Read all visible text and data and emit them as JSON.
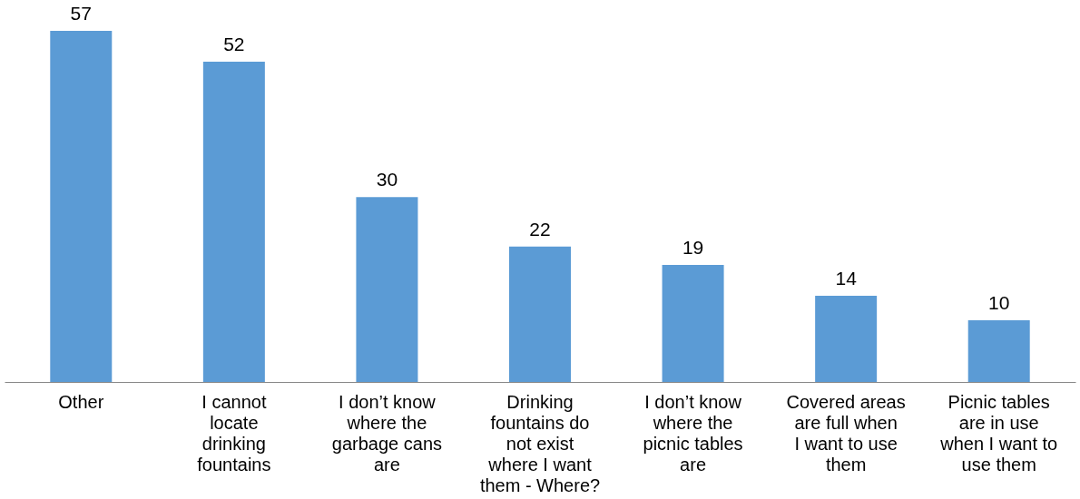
{
  "chart_data": {
    "type": "bar",
    "categories": [
      "Other",
      "I cannot locate drinking fountains",
      "I don’t know where the garbage cans are",
      "Drinking fountains do not exist where I want them - Where?",
      "I don’t know where the picnic tables are",
      "Covered areas are full when I want to use them",
      "Picnic tables are in use when I want to use them"
    ],
    "values": [
      57,
      52,
      30,
      22,
      19,
      14,
      10
    ],
    "color": "#5b9bd5",
    "data_labels": true,
    "grid": false
  }
}
